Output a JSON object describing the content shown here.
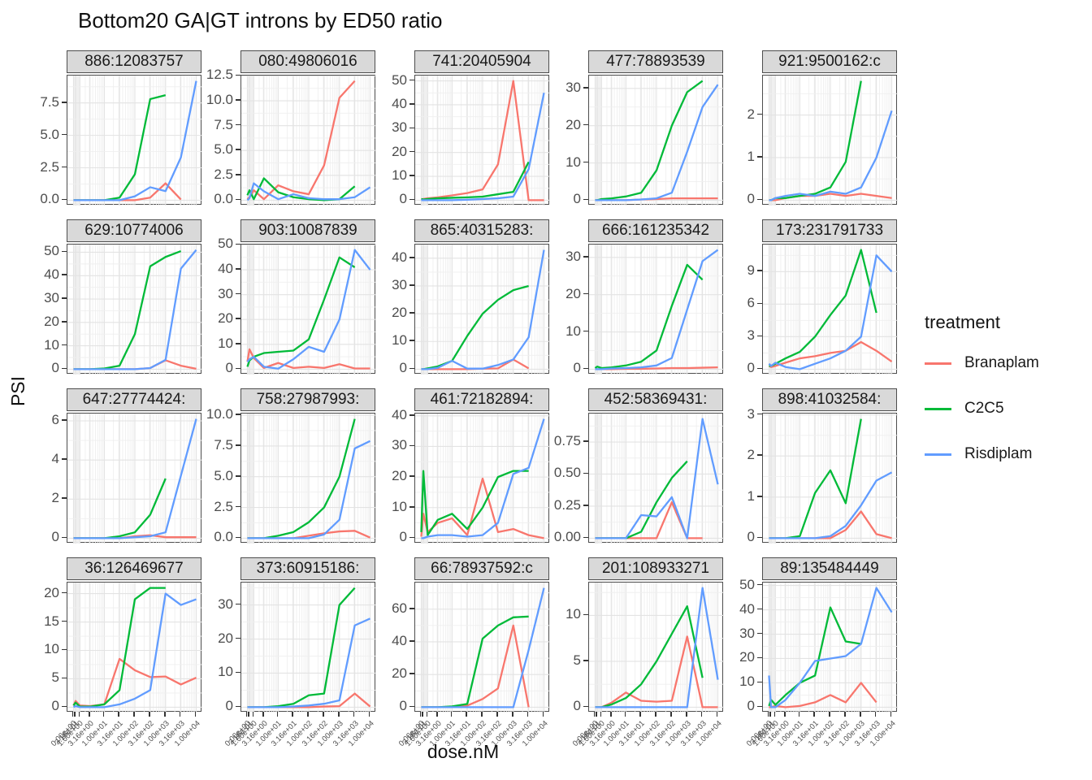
{
  "title": "Bottom20 GA|GT introns by ED50 ratio",
  "ylabel": "PSI",
  "xlabel": "dose.nM",
  "legend": {
    "title": "treatment",
    "entries": [
      {
        "label": "Branaplam",
        "color": "#F8766D"
      },
      {
        "label": "C2C5",
        "color": "#00BA38"
      },
      {
        "label": "Risdiplam",
        "color": "#619CFF"
      }
    ]
  },
  "theme": {
    "strip_fill": "#d9d9d9",
    "panel_border": "#4d4d4d",
    "grid_major": "#e3e3e3",
    "grid_minor": "#efefef",
    "tick_text": "#4d4d4d"
  },
  "chart_data": {
    "type": "line",
    "title": "Bottom20 GA|GT introns by ED50 ratio",
    "xlabel": "dose.nM",
    "ylabel": "PSI",
    "x_scale": "pseudo-log",
    "legend_position": "right",
    "grid": true,
    "doses": [
      0,
      0.316,
      1,
      3.16,
      10,
      31.6,
      100,
      316,
      1000,
      3160,
      10000
    ],
    "x_tick_labels": [
      "0.00e+00",
      "3.16e-01",
      "1.00e+00",
      "3.16e+00",
      "1.00e+01",
      "3.16e+01",
      "1.00e+02",
      "3.16e+02",
      "1.00e+03",
      "3.16e+03",
      "1.00e+04"
    ],
    "series_names": [
      "Branaplam",
      "C2C5",
      "Risdiplam"
    ],
    "facets": [
      {
        "title": "886:12083757",
        "y_ticks": [
          "0.0",
          "2.5",
          "5.0",
          "7.5"
        ],
        "series": {
          "Branaplam": [
            0,
            0,
            0,
            0,
            0,
            0,
            0,
            0.2,
            1.3,
            0.05,
            null
          ],
          "C2C5": [
            0,
            0,
            0,
            0,
            0,
            0.2,
            2,
            7.8,
            8.1,
            null,
            null
          ],
          "Risdiplam": [
            0,
            0,
            0,
            0,
            0,
            0,
            0.3,
            1.0,
            0.7,
            3.3,
            9.2
          ]
        }
      },
      {
        "title": "080:49806016",
        "y_ticks": [
          "0.0",
          "2.5",
          "5.0",
          "7.5",
          "10.0",
          "12.5"
        ],
        "series": {
          "Branaplam": [
            0.1,
            0.3,
            1.0,
            0.1,
            1.5,
            0.9,
            0.6,
            3.5,
            10.3,
            12,
            null
          ],
          "C2C5": [
            0.5,
            1.0,
            0.1,
            2.2,
            0.8,
            0.3,
            0.1,
            0,
            0.1,
            1.4,
            null
          ],
          "Risdiplam": [
            0,
            0.2,
            1.7,
            0.9,
            0.1,
            0.6,
            0.2,
            0.1,
            0.1,
            0.3,
            1.3
          ]
        }
      },
      {
        "title": "741:20405904",
        "y_ticks": [
          "0",
          "10",
          "20",
          "30",
          "40",
          "50"
        ],
        "series": {
          "Branaplam": [
            0.3,
            0.5,
            0.8,
            1.2,
            2,
            3,
            4.5,
            15,
            50,
            0,
            0
          ],
          "C2C5": [
            0.5,
            0.3,
            0.5,
            0.8,
            1,
            1.2,
            1.5,
            2.5,
            3.5,
            16,
            null
          ],
          "Risdiplam": [
            0,
            0,
            0,
            0,
            0,
            0.2,
            0.5,
            0.8,
            1.5,
            13,
            45
          ]
        }
      },
      {
        "title": "477:78893539",
        "y_ticks": [
          "0",
          "10",
          "20",
          "30"
        ],
        "series": {
          "Branaplam": [
            0,
            0,
            0,
            0,
            0,
            0.2,
            0.3,
            0.5,
            0.5,
            0.5,
            0.5
          ],
          "C2C5": [
            0,
            0,
            0.3,
            0.5,
            1,
            2,
            8,
            20,
            29,
            32,
            null
          ],
          "Risdiplam": [
            0,
            0,
            0,
            0,
            0,
            0.2,
            0.5,
            2,
            13,
            25,
            31
          ]
        }
      },
      {
        "title": "921:9500162:c",
        "y_ticks": [
          "0",
          "1",
          "2"
        ],
        "series": {
          "Branaplam": [
            0,
            0,
            0,
            0.05,
            0.1,
            0.1,
            0.15,
            0.1,
            0.15,
            0.1,
            0.05
          ],
          "C2C5": [
            0,
            0,
            0.05,
            0.05,
            0.1,
            0.15,
            0.3,
            0.9,
            2.8,
            null,
            null
          ],
          "Risdiplam": [
            0,
            0,
            0.05,
            0.1,
            0.15,
            0.1,
            0.2,
            0.15,
            0.3,
            1.0,
            2.1
          ]
        }
      },
      {
        "title": "629:10774006",
        "y_ticks": [
          "0",
          "10",
          "20",
          "30",
          "40",
          "50"
        ],
        "series": {
          "Branaplam": [
            0,
            0,
            0,
            0,
            0,
            0,
            0,
            0.5,
            3.8,
            1.5,
            0.2
          ],
          "C2C5": [
            0,
            0,
            0,
            0,
            0.3,
            1.5,
            15,
            44,
            48,
            50.5,
            null
          ],
          "Risdiplam": [
            0,
            0,
            0,
            0,
            0,
            0,
            0,
            0.5,
            4,
            43,
            51
          ]
        }
      },
      {
        "title": "903:10087839",
        "y_ticks": [
          "0",
          "10",
          "20",
          "30",
          "40",
          "50"
        ],
        "series": {
          "Branaplam": [
            3,
            8,
            4.5,
            0.5,
            2.5,
            0.5,
            1,
            0.5,
            2,
            0.3,
            0.3
          ],
          "C2C5": [
            1,
            3.5,
            5,
            6.5,
            7,
            7.5,
            12,
            28,
            45,
            41,
            null
          ],
          "Risdiplam": [
            3,
            4,
            5,
            1,
            0.2,
            4,
            9,
            7,
            20,
            48,
            40
          ]
        }
      },
      {
        "title": "865:40315283:",
        "y_ticks": [
          "0",
          "10",
          "20",
          "30",
          "40"
        ],
        "series": {
          "Branaplam": [
            0,
            0,
            0,
            0,
            0,
            0,
            0.2,
            0.3,
            3.5,
            0.3,
            null
          ],
          "C2C5": [
            0,
            0,
            0.3,
            1,
            3,
            12,
            20,
            25,
            28.5,
            30,
            null
          ],
          "Risdiplam": [
            0,
            0,
            0,
            0.5,
            3,
            0.2,
            0.2,
            1.5,
            3.5,
            11.5,
            43
          ]
        }
      },
      {
        "title": "666:161235342",
        "y_ticks": [
          "0",
          "10",
          "20",
          "30"
        ],
        "series": {
          "Branaplam": [
            0,
            0,
            0,
            0,
            0.1,
            0.1,
            0.2,
            0.3,
            0.3,
            0.4,
            0.5
          ],
          "C2C5": [
            0.3,
            0.7,
            0.3,
            0.5,
            1,
            2,
            5,
            17,
            28,
            24,
            null
          ],
          "Risdiplam": [
            0,
            0,
            0,
            0.2,
            0.3,
            0.5,
            1,
            3,
            16,
            29,
            32
          ]
        }
      },
      {
        "title": "173:231791733",
        "y_ticks": [
          "0",
          "3",
          "6",
          "9"
        ],
        "series": {
          "Branaplam": [
            0.3,
            0.2,
            0.3,
            0.6,
            1,
            1.2,
            1.5,
            1.7,
            2.5,
            1.7,
            0.7
          ],
          "C2C5": [
            0.3,
            0.3,
            0.5,
            1,
            1.6,
            3,
            5,
            6.8,
            11,
            5.2,
            null
          ],
          "Risdiplam": [
            0.5,
            0.3,
            0.6,
            0.2,
            0,
            0.5,
            1,
            1.7,
            3,
            10.5,
            9
          ]
        }
      },
      {
        "title": "647:27774424:",
        "y_ticks": [
          "0",
          "2",
          "4",
          "6"
        ],
        "series": {
          "Branaplam": [
            0,
            0,
            0,
            0,
            0,
            0,
            0.1,
            0.15,
            0.05,
            0.05,
            0.05
          ],
          "C2C5": [
            0,
            0,
            0,
            0,
            0,
            0.1,
            0.3,
            1.2,
            3.05,
            null,
            null
          ],
          "Risdiplam": [
            0,
            0,
            0,
            0,
            0,
            0,
            0.05,
            0.1,
            0.3,
            3.2,
            6.1
          ]
        }
      },
      {
        "title": "758:27987993:",
        "y_ticks": [
          "0.0",
          "2.5",
          "5.0",
          "7.5",
          "10.0"
        ],
        "series": {
          "Branaplam": [
            0,
            0,
            0,
            0,
            0,
            0,
            0.2,
            0.4,
            0.55,
            0.6,
            0.05
          ],
          "C2C5": [
            0,
            0,
            0,
            0,
            0.2,
            0.5,
            1.3,
            2.5,
            5,
            9.7,
            null
          ],
          "Risdiplam": [
            0,
            0,
            0,
            0,
            0,
            0,
            0,
            0.3,
            1.5,
            7.3,
            7.9
          ]
        }
      },
      {
        "title": "461:72182894:",
        "y_ticks": [
          "0",
          "10",
          "20",
          "30",
          "40"
        ],
        "series": {
          "Branaplam": [
            0.5,
            8,
            2,
            5,
            6.5,
            1,
            19.5,
            2,
            3,
            1,
            0
          ],
          "C2C5": [
            2,
            22,
            1,
            6,
            8,
            3,
            10,
            20,
            22,
            22,
            null
          ],
          "Risdiplam": [
            0,
            0,
            0.5,
            1,
            1,
            0.5,
            1,
            5,
            21,
            23,
            39
          ]
        }
      },
      {
        "title": "452:58369431:",
        "y_ticks": [
          "0.00",
          "0.25",
          "0.50",
          "0.75"
        ],
        "series": {
          "Branaplam": [
            0,
            0,
            0,
            0,
            0,
            0,
            0,
            0.28,
            0,
            0,
            null
          ],
          "C2C5": [
            0,
            0,
            0,
            0,
            0,
            0.05,
            0.28,
            0.47,
            0.6,
            null,
            null
          ],
          "Risdiplam": [
            0,
            0,
            0,
            0,
            0,
            0.18,
            0.17,
            0.32,
            0,
            0.93,
            0.42
          ]
        }
      },
      {
        "title": "898:41032584:",
        "y_ticks": [
          "0",
          "1",
          "2",
          "3"
        ],
        "series": {
          "Branaplam": [
            0,
            0,
            0,
            0,
            0,
            0,
            0,
            0.2,
            0.65,
            0.1,
            0
          ],
          "C2C5": [
            0,
            0,
            0,
            0,
            0.05,
            1.1,
            1.65,
            0.85,
            2.9,
            null,
            null
          ],
          "Risdiplam": [
            0,
            0,
            0,
            0,
            0,
            0,
            0.05,
            0.3,
            0.8,
            1.4,
            1.6
          ]
        }
      },
      {
        "title": "36:126469677",
        "y_ticks": [
          "0",
          "5",
          "10",
          "15",
          "20"
        ],
        "series": {
          "Branaplam": [
            0.3,
            1.1,
            0.3,
            0.2,
            0.5,
            8.5,
            6.5,
            5.3,
            5.4,
            4,
            5.2
          ],
          "C2C5": [
            0.3,
            0.8,
            0.1,
            0.1,
            0.5,
            3,
            19,
            21,
            21,
            null,
            null
          ],
          "Risdiplam": [
            0,
            0.2,
            0,
            0,
            0,
            0.5,
            1.5,
            3,
            20,
            18,
            19
          ]
        }
      },
      {
        "title": "373:60915186:",
        "y_ticks": [
          "0",
          "10",
          "20",
          "30"
        ],
        "series": {
          "Branaplam": [
            0,
            0,
            0,
            0,
            0,
            0,
            0,
            0.2,
            0.3,
            4,
            0.2
          ],
          "C2C5": [
            0,
            0,
            0,
            0,
            0.3,
            1,
            3.5,
            4,
            30,
            35,
            null
          ],
          "Risdiplam": [
            0,
            0,
            0,
            0,
            0,
            0.2,
            0.5,
            1,
            2,
            24,
            26
          ]
        }
      },
      {
        "title": "66:78937592:c",
        "y_ticks": [
          "0",
          "20",
          "40",
          "60"
        ],
        "series": {
          "Branaplam": [
            0,
            0,
            0,
            0,
            0.3,
            1,
            5,
            11.5,
            50,
            0,
            null
          ],
          "C2C5": [
            0,
            0,
            0,
            0,
            0.5,
            2,
            42,
            50,
            55,
            55.5,
            null
          ],
          "Risdiplam": [
            0,
            0,
            0,
            0,
            0,
            0,
            0,
            0,
            0,
            35,
            73
          ]
        }
      },
      {
        "title": "201:108933271",
        "y_ticks": [
          "0",
          "5",
          "10"
        ],
        "series": {
          "Branaplam": [
            0,
            0,
            0,
            0.5,
            1.6,
            0.7,
            0.6,
            0.7,
            7.7,
            0,
            0
          ],
          "C2C5": [
            0,
            0,
            0,
            0.3,
            1,
            2.5,
            5,
            8,
            11,
            3.2,
            null
          ],
          "Risdiplam": [
            0,
            0,
            0,
            0,
            0,
            0,
            0,
            0,
            0,
            13,
            3
          ]
        }
      },
      {
        "title": "89:135484449",
        "y_ticks": [
          "0",
          "10",
          "20",
          "30",
          "40",
          "50"
        ],
        "series": {
          "Branaplam": [
            0,
            0,
            0.5,
            0,
            0.5,
            2,
            5,
            2,
            10,
            2,
            null
          ],
          "C2C5": [
            0.5,
            3,
            1,
            5,
            10,
            13,
            41,
            27,
            26,
            null,
            null
          ],
          "Risdiplam": [
            13,
            0,
            0,
            3,
            10,
            19,
            20,
            21,
            26,
            49,
            39
          ]
        }
      }
    ]
  }
}
